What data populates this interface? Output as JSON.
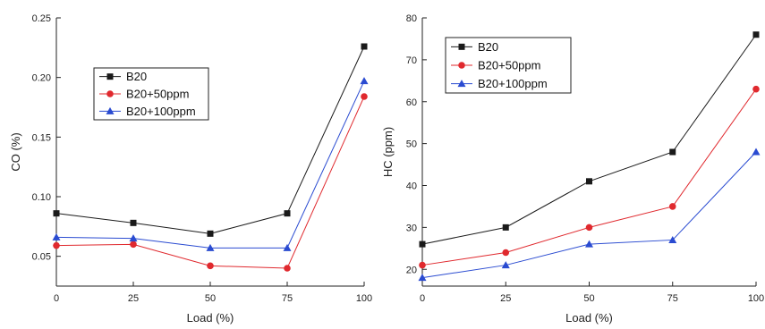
{
  "chart_data": [
    {
      "type": "line",
      "xlabel": "Load (%)",
      "ylabel": "CO (%)",
      "x": [
        0,
        25,
        50,
        75,
        100
      ],
      "xticks": [
        "0",
        "25",
        "50",
        "75",
        "100"
      ],
      "yticks": [
        "0.05",
        "0.10",
        "0.15",
        "0.20",
        "0.25"
      ],
      "xlim": [
        0,
        100
      ],
      "ylim": [
        0.025,
        0.25
      ],
      "legend_position": "upper-left",
      "series": [
        {
          "name": "B20",
          "values": [
            0.086,
            0.078,
            0.069,
            0.086,
            0.226
          ],
          "color": "#1a1a1a",
          "marker": "square"
        },
        {
          "name": "B20+50ppm",
          "values": [
            0.059,
            0.06,
            0.042,
            0.04,
            0.184
          ],
          "color": "#e0292e",
          "marker": "circle"
        },
        {
          "name": "B20+100ppm",
          "values": [
            0.066,
            0.065,
            0.057,
            0.057,
            0.197
          ],
          "color": "#2a4bd1",
          "marker": "triangle"
        }
      ]
    },
    {
      "type": "line",
      "xlabel": "Load (%)",
      "ylabel": "HC (ppm)",
      "x": [
        0,
        25,
        50,
        75,
        100
      ],
      "xticks": [
        "0",
        "25",
        "50",
        "75",
        "100"
      ],
      "yticks": [
        "20",
        "30",
        "40",
        "50",
        "60",
        "70",
        "80"
      ],
      "xlim": [
        0,
        100
      ],
      "ylim": [
        16,
        80
      ],
      "legend_position": "upper-left",
      "series": [
        {
          "name": "B20",
          "values": [
            26,
            30,
            41,
            48,
            76
          ],
          "color": "#1a1a1a",
          "marker": "square"
        },
        {
          "name": "B20+50ppm",
          "values": [
            21,
            24,
            30,
            35,
            63
          ],
          "color": "#e0292e",
          "marker": "circle"
        },
        {
          "name": "B20+100ppm",
          "values": [
            18,
            21,
            26,
            27,
            48
          ],
          "color": "#2a4bd1",
          "marker": "triangle"
        }
      ]
    }
  ]
}
